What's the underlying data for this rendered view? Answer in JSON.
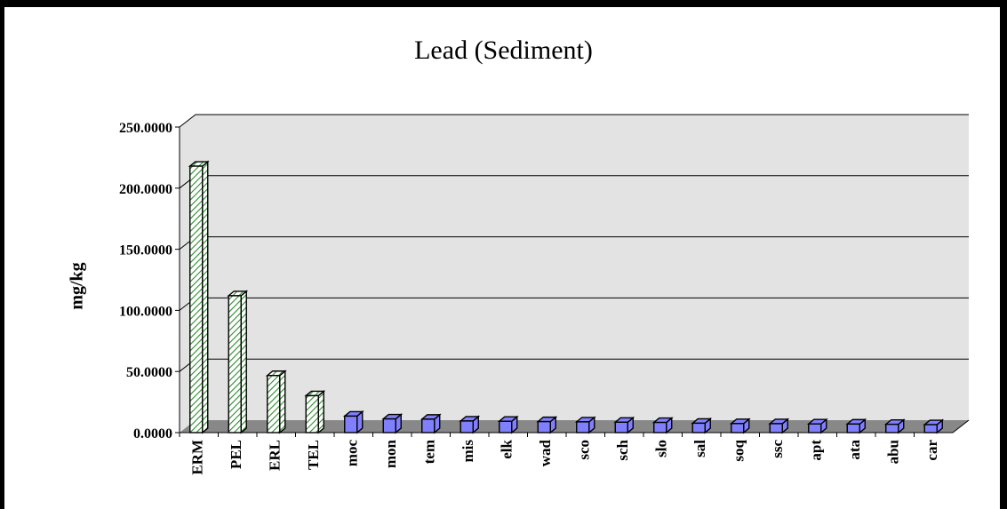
{
  "chart_data": {
    "type": "bar",
    "title": "Lead (Sediment)",
    "xlabel": "",
    "ylabel": "mg/kg",
    "ylim": [
      0,
      250
    ],
    "yticks": [
      "0.0000",
      "50.0000",
      "100.0000",
      "150.0000",
      "200.0000",
      "250.0000"
    ],
    "grid": true,
    "categories": [
      "ERM",
      "PEL",
      "ERL",
      "TEL",
      "moc",
      "mon",
      "tem",
      "mis",
      "elk",
      "wad",
      "sco",
      "sch",
      "slo",
      "sal",
      "soq",
      "ssc",
      "apt",
      "ata",
      "abu",
      "car"
    ],
    "values": [
      218,
      112,
      46.7,
      30.2,
      13.5,
      11.2,
      11.0,
      9.5,
      9.3,
      9.0,
      8.8,
      8.5,
      8.3,
      7.7,
      7.4,
      7.3,
      7.1,
      7.0,
      6.8,
      6.5
    ],
    "bar_styles": [
      "hatched",
      "hatched",
      "hatched",
      "hatched",
      "solid",
      "solid",
      "solid",
      "solid",
      "solid",
      "solid",
      "solid",
      "solid",
      "solid",
      "solid",
      "solid",
      "solid",
      "solid",
      "solid",
      "solid",
      "solid"
    ],
    "colors": {
      "hatched_fill": "#2e8b2e",
      "hatched_bg": "#ffffff",
      "solid_fill": "#8080ff",
      "wall": "#e3e3e3",
      "floor": "#888888"
    }
  }
}
